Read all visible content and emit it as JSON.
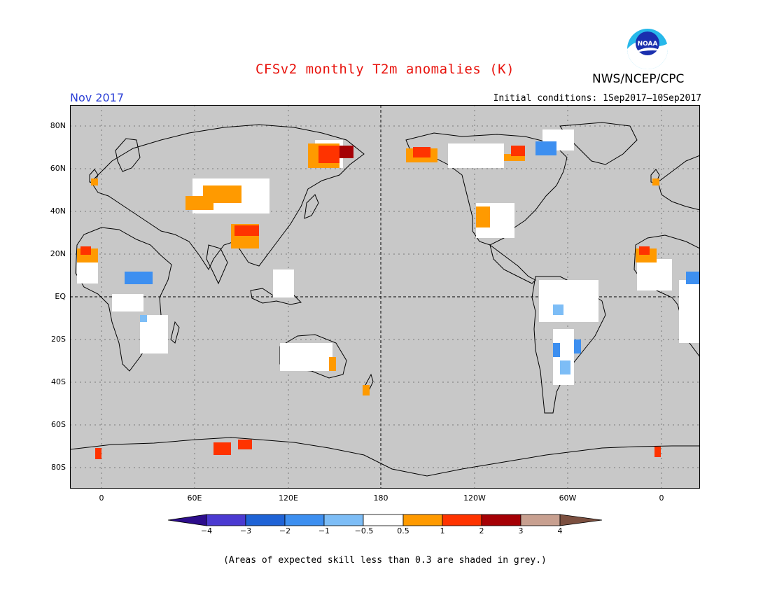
{
  "title": "CFSv2 monthly T2m anomalies (K)",
  "agency": "NWS/NCEP/CPC",
  "valid_month": "Nov 2017",
  "initial_conditions": "Initial conditions: 1Sep2017—10Sep2017",
  "logo_text": "NOAA",
  "lat_labels": [
    "80N",
    "60N",
    "40N",
    "20N",
    "EQ",
    "20S",
    "40S",
    "60S",
    "80S"
  ],
  "lon_labels": [
    "0",
    "60E",
    "120E",
    "180",
    "120W",
    "60W",
    "0"
  ],
  "colorbar": {
    "labels": [
      "−4",
      "−3",
      "−2",
      "−1",
      "−0.5",
      "0.5",
      "1",
      "2",
      "3",
      "4"
    ],
    "colors": [
      "#2d0d8c",
      "#4b3ad1",
      "#1f63d6",
      "#3d8ff0",
      "#7dbdf6",
      "#ffffff",
      "#ff9a00",
      "#ff3300",
      "#a50005",
      "#c8a090",
      "#7c5040"
    ]
  },
  "footnote": "(Areas of expected skill less than 0.3 are shaded in grey.)",
  "colors": {
    "land_mask": "#c8c8c8",
    "title": "#e8120c",
    "month": "#2b3fd6"
  }
}
